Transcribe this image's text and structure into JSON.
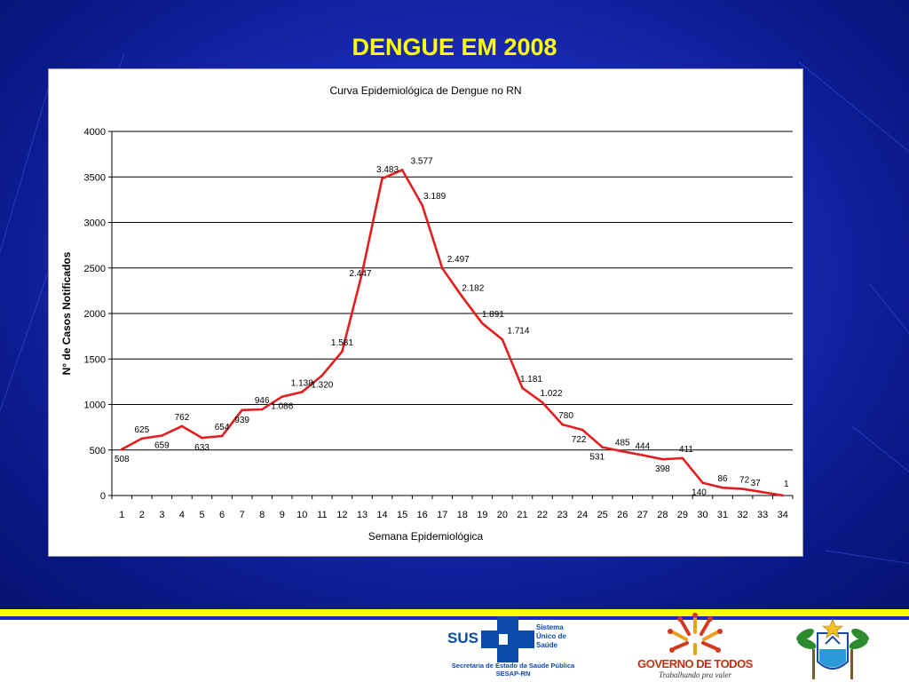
{
  "slide": {
    "title": "DENGUE EM 2008",
    "colors": {
      "background": "#1a2cb8",
      "title": "#ffff00",
      "line": "#e31e1e",
      "stripe": "#ffff00"
    }
  },
  "chart_data": {
    "type": "line",
    "title": "Curva Epidemiológica de Dengue no RN",
    "xlabel": "Semana Epidemiológica",
    "ylabel": "N° de Casos Notificados",
    "x": [
      1,
      2,
      3,
      4,
      5,
      6,
      7,
      8,
      9,
      10,
      11,
      12,
      13,
      14,
      15,
      16,
      17,
      18,
      19,
      20,
      21,
      22,
      23,
      24,
      25,
      26,
      27,
      28,
      29,
      30,
      31,
      32,
      33,
      34
    ],
    "ylim": [
      0,
      4000
    ],
    "yticks": [
      0,
      500,
      1000,
      1500,
      2000,
      2500,
      3000,
      3500,
      4000
    ],
    "grid": "horizontal",
    "series": [
      {
        "values": [
          508,
          625,
          659,
          762,
          633,
          654,
          939,
          946,
          1086,
          1138,
          1320,
          1581,
          2447,
          3483,
          3577,
          3189,
          2497,
          2182,
          1891,
          1714,
          1181,
          1022,
          780,
          722,
          531,
          485,
          444,
          398,
          411,
          140,
          86,
          72,
          37,
          1
        ],
        "data_labels": [
          "508",
          "625",
          "659",
          "762",
          "633",
          "654",
          "939",
          "946",
          "1.086",
          "1.138",
          "1.320",
          "1.581",
          "2.447",
          "3.483",
          "3.577",
          "3.189",
          "2.497",
          "2.182",
          "1.891",
          "1.714",
          "1.181",
          "1.022",
          "780",
          "722",
          "531",
          "485",
          "444",
          "398",
          "411",
          "140",
          "86",
          "72",
          "37",
          "1"
        ],
        "color": "#e31e1e"
      }
    ]
  },
  "footer": {
    "sus": {
      "word": "SUS",
      "system_lines": [
        "Sistema",
        "Único de",
        "Saúde"
      ],
      "secretaria": "Secretaria de Estado da Saúde Pública",
      "sesap": "SESAP-RN"
    },
    "gov": {
      "title": "GOVERNO DE TODOS",
      "tagline": "Trabalhando pra valer"
    }
  }
}
